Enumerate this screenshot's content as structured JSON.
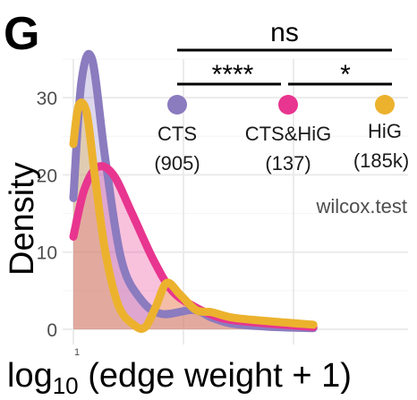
{
  "panel_label": "G",
  "chart_data": {
    "type": "area",
    "ylabel": "Density",
    "xlabel_main": "log",
    "xlabel_sub": "10",
    "xlabel_rest": " (edge weight + 1)",
    "x_ticks": [
      "1"
    ],
    "y_ticks": [
      "0",
      "10",
      "20",
      "30"
    ],
    "ylim": [
      0,
      35
    ],
    "grid": true,
    "series": [
      {
        "name": "CTS",
        "count_label": "(905)",
        "color": "#8B7BBF",
        "points": [
          [
            0.0,
            17
          ],
          [
            0.03,
            32
          ],
          [
            0.07,
            35
          ],
          [
            0.12,
            22
          ],
          [
            0.18,
            9
          ],
          [
            0.25,
            4
          ],
          [
            0.33,
            2
          ],
          [
            0.45,
            2.5
          ],
          [
            0.52,
            1.5
          ],
          [
            0.6,
            0.7
          ],
          [
            0.75,
            0.3
          ],
          [
            0.9,
            0.15
          ]
        ]
      },
      {
        "name": "CTS&HiG",
        "count_label": "(137)",
        "color": "#E8358F",
        "points": [
          [
            0.0,
            12
          ],
          [
            0.04,
            18
          ],
          [
            0.09,
            21
          ],
          [
            0.15,
            20
          ],
          [
            0.22,
            15
          ],
          [
            0.3,
            9
          ],
          [
            0.37,
            5
          ],
          [
            0.45,
            3
          ],
          [
            0.55,
            1.5
          ],
          [
            0.65,
            1
          ],
          [
            0.75,
            0.7
          ],
          [
            0.9,
            0.3
          ]
        ]
      },
      {
        "name": "HiG",
        "count_label": "(185k)",
        "color": "#ECB22E",
        "points": [
          [
            0.0,
            24
          ],
          [
            0.02,
            29
          ],
          [
            0.05,
            28
          ],
          [
            0.08,
            20
          ],
          [
            0.12,
            10
          ],
          [
            0.17,
            3
          ],
          [
            0.23,
            0.5
          ],
          [
            0.27,
            0.3
          ],
          [
            0.31,
            3
          ],
          [
            0.35,
            6
          ],
          [
            0.4,
            4.5
          ],
          [
            0.46,
            2.5
          ],
          [
            0.52,
            2.2
          ],
          [
            0.6,
            1.5
          ],
          [
            0.75,
            1
          ],
          [
            0.9,
            0.6
          ]
        ]
      }
    ]
  },
  "annotations": {
    "ns": "ns",
    "stars4": "****",
    "star1": "*",
    "test": "wilcox.test"
  }
}
